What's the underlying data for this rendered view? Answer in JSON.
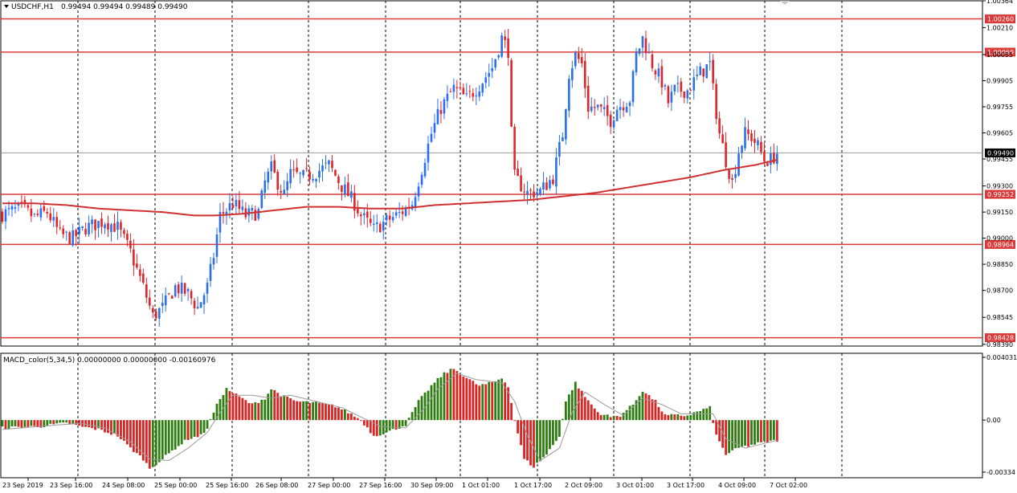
{
  "symbol_label": "USDCHF,H1",
  "ohlc_label": "0.99494 0.99494 0.99489 0.99490",
  "macd_label": "MACD_color(5,34,5) 0.00000000 0.00000000 -0.00160976",
  "current_price_label": "0.99490",
  "colors": {
    "bull": "#2a6ff0",
    "bear": "#e0242a",
    "level": "#d93a3a",
    "ma": "#d03030",
    "macd_up": "#2e7d10",
    "macd_down": "#dd2222",
    "signal": "#9a9a9a",
    "grid": "#000000",
    "current": "#9a9a9a"
  },
  "chart_data": [
    {
      "type": "candlestick",
      "name": "USDCHF,H1",
      "y_ticks": [
        "1.00364",
        "1.00210",
        "1.00055",
        "0.99905",
        "0.99755",
        "0.99605",
        "0.99455",
        "0.99300",
        "0.99150",
        "0.99000",
        "0.98850",
        "0.98700",
        "0.98545",
        "0.98390"
      ],
      "ylim": [
        0.9838,
        1.00364
      ],
      "levels": [
        "1.00260",
        "1.00069",
        "0.99252",
        "0.98964",
        "0.98428"
      ],
      "current_price": "0.99490",
      "x_labels": [
        "23 Sep 2019",
        "23 Sep 16:00",
        "24 Sep 08:00",
        "25 Sep 00:00",
        "25 Sep 16:00",
        "26 Sep 08:00",
        "27 Sep 00:00",
        "27 Sep 16:00",
        "30 Sep 09:00",
        "1 Oct 01:00",
        "1 Oct 17:00",
        "2 Oct 09:00",
        "3 Oct 01:00",
        "3 Oct 17:00",
        "4 Oct 09:00",
        "7 Oct 02:00"
      ],
      "close_anchors": [
        [
          0,
          0.9914
        ],
        [
          6,
          0.9917
        ],
        [
          10,
          0.9912
        ],
        [
          14,
          0.9915
        ],
        [
          18,
          0.9902
        ],
        [
          22,
          0.99
        ],
        [
          26,
          0.9906
        ],
        [
          32,
          0.991
        ],
        [
          36,
          0.9906
        ],
        [
          40,
          0.9892
        ],
        [
          44,
          0.9872
        ],
        [
          47,
          0.9855
        ],
        [
          50,
          0.986
        ],
        [
          54,
          0.9872
        ],
        [
          58,
          0.9868
        ],
        [
          61,
          0.986
        ],
        [
          64,
          0.9872
        ],
        [
          66,
          0.989
        ],
        [
          68,
          0.9913
        ],
        [
          72,
          0.992
        ],
        [
          76,
          0.9913
        ],
        [
          80,
          0.9915
        ],
        [
          82,
          0.9932
        ],
        [
          84,
          0.994
        ],
        [
          86,
          0.9932
        ],
        [
          88,
          0.9925
        ],
        [
          90,
          0.9937
        ],
        [
          94,
          0.9935
        ],
        [
          98,
          0.9938
        ],
        [
          102,
          0.9942
        ],
        [
          104,
          0.9936
        ],
        [
          106,
          0.993
        ],
        [
          110,
          0.992
        ],
        [
          112,
          0.9913
        ],
        [
          116,
          0.9905
        ],
        [
          120,
          0.991
        ],
        [
          124,
          0.9914
        ],
        [
          128,
          0.992
        ],
        [
          131,
          0.994
        ],
        [
          134,
          0.996
        ],
        [
          137,
          0.9975
        ],
        [
          141,
          0.9986
        ],
        [
          145,
          0.998
        ],
        [
          149,
          0.9988
        ],
        [
          153,
          0.9998
        ],
        [
          156,
          1.0015
        ],
        [
          158,
          1.0008
        ],
        [
          159,
          0.996
        ],
        [
          160,
          0.9935
        ],
        [
          164,
          0.9926
        ],
        [
          168,
          0.9927
        ],
        [
          172,
          0.9935
        ],
        [
          175,
          0.996
        ],
        [
          177,
          0.9995
        ],
        [
          179,
          1.0005
        ],
        [
          181,
          1.0
        ],
        [
          183,
          0.9975
        ],
        [
          186,
          0.9975
        ],
        [
          190,
          0.9968
        ],
        [
          192,
          0.9975
        ],
        [
          196,
          0.998
        ],
        [
          198,
          1.0005
        ],
        [
          200,
          1.0015
        ],
        [
          203,
          1.0
        ],
        [
          206,
          0.999
        ],
        [
          208,
          0.9978
        ],
        [
          210,
          0.9985
        ],
        [
          214,
          0.9985
        ],
        [
          218,
          0.9995
        ],
        [
          221,
          1.0
        ],
        [
          222,
          0.9985
        ],
        [
          224,
          0.996
        ],
        [
          226,
          0.9945
        ],
        [
          228,
          0.9932
        ],
        [
          230,
          0.995
        ],
        [
          232,
          0.996
        ],
        [
          234,
          0.9958
        ],
        [
          236,
          0.9953
        ],
        [
          238,
          0.9945
        ],
        [
          240,
          0.9945
        ],
        [
          242,
          0.9949
        ]
      ],
      "ma_anchors": [
        [
          0,
          0.992
        ],
        [
          10,
          0.992
        ],
        [
          20,
          0.9919
        ],
        [
          30,
          0.9917
        ],
        [
          40,
          0.9916
        ],
        [
          50,
          0.9915
        ],
        [
          60,
          0.9913
        ],
        [
          66,
          0.9913
        ],
        [
          75,
          0.9914
        ],
        [
          85,
          0.9916
        ],
        [
          95,
          0.9918
        ],
        [
          105,
          0.9918
        ],
        [
          115,
          0.9917
        ],
        [
          125,
          0.9917
        ],
        [
          135,
          0.9919
        ],
        [
          145,
          0.992
        ],
        [
          155,
          0.9921
        ],
        [
          165,
          0.9922
        ],
        [
          175,
          0.9924
        ],
        [
          185,
          0.9926
        ],
        [
          195,
          0.9929
        ],
        [
          205,
          0.9932
        ],
        [
          215,
          0.9935
        ],
        [
          225,
          0.9939
        ],
        [
          235,
          0.9942
        ],
        [
          242,
          0.9945
        ]
      ],
      "bar_count": 243
    },
    {
      "type": "bar",
      "name": "MACD_color(5,34,5)",
      "y_ticks": [
        "0.004031",
        "0.00",
        "-0.00334"
      ],
      "ylim": [
        -0.00334,
        0.004031
      ],
      "macd_anchors": [
        [
          0,
          -0.0005
        ],
        [
          12,
          -0.0004
        ],
        [
          20,
          -0.0002
        ],
        [
          24,
          -0.0004
        ],
        [
          30,
          -0.0006
        ],
        [
          36,
          -0.001
        ],
        [
          40,
          -0.0018
        ],
        [
          44,
          -0.0025
        ],
        [
          46,
          -0.0031
        ],
        [
          50,
          -0.0025
        ],
        [
          54,
          -0.0018
        ],
        [
          58,
          -0.0012
        ],
        [
          62,
          -0.001
        ],
        [
          64,
          -0.0005
        ],
        [
          66,
          0.0005
        ],
        [
          68,
          0.0014
        ],
        [
          70,
          0.002
        ],
        [
          74,
          0.0015
        ],
        [
          78,
          0.001
        ],
        [
          82,
          0.0014
        ],
        [
          84,
          0.002
        ],
        [
          88,
          0.0015
        ],
        [
          92,
          0.0012
        ],
        [
          98,
          0.0011
        ],
        [
          104,
          0.0009
        ],
        [
          108,
          0.0005
        ],
        [
          112,
          0.0
        ],
        [
          116,
          -0.001
        ],
        [
          120,
          -0.0008
        ],
        [
          126,
          -0.0003
        ],
        [
          130,
          0.0012
        ],
        [
          134,
          0.0022
        ],
        [
          138,
          0.003
        ],
        [
          141,
          0.0033
        ],
        [
          145,
          0.0027
        ],
        [
          149,
          0.0022
        ],
        [
          153,
          0.0024
        ],
        [
          156,
          0.0027
        ],
        [
          158,
          0.0022
        ],
        [
          160,
          0.0
        ],
        [
          163,
          -0.0025
        ],
        [
          166,
          -0.003
        ],
        [
          170,
          -0.0022
        ],
        [
          174,
          -0.001
        ],
        [
          176,
          0.0012
        ],
        [
          179,
          0.0024
        ],
        [
          182,
          0.0015
        ],
        [
          186,
          0.0005
        ],
        [
          190,
          0.0002
        ],
        [
          193,
          0.0003
        ],
        [
          197,
          0.001
        ],
        [
          200,
          0.0019
        ],
        [
          204,
          0.0012
        ],
        [
          207,
          0.0003
        ],
        [
          210,
          0.0003
        ],
        [
          214,
          0.0003
        ],
        [
          218,
          0.0006
        ],
        [
          221,
          0.0008
        ],
        [
          223,
          -0.001
        ],
        [
          226,
          -0.0022
        ],
        [
          230,
          -0.0018
        ],
        [
          236,
          -0.0015
        ],
        [
          242,
          -0.0013
        ]
      ],
      "signal_anchors": [
        [
          0,
          -0.0006
        ],
        [
          12,
          -0.0004
        ],
        [
          24,
          -0.0002
        ],
        [
          32,
          -0.0005
        ],
        [
          40,
          -0.0014
        ],
        [
          46,
          -0.0025
        ],
        [
          52,
          -0.0026
        ],
        [
          58,
          -0.0018
        ],
        [
          64,
          -0.0008
        ],
        [
          68,
          0.0005
        ],
        [
          72,
          0.0016
        ],
        [
          78,
          0.0016
        ],
        [
          84,
          0.0014
        ],
        [
          90,
          0.0016
        ],
        [
          98,
          0.0012
        ],
        [
          106,
          0.0008
        ],
        [
          112,
          0.0002
        ],
        [
          118,
          -0.0004
        ],
        [
          126,
          -0.0005
        ],
        [
          132,
          0.0008
        ],
        [
          136,
          0.002
        ],
        [
          142,
          0.003
        ],
        [
          148,
          0.0026
        ],
        [
          156,
          0.0024
        ],
        [
          160,
          0.0012
        ],
        [
          164,
          -0.001
        ],
        [
          168,
          -0.0026
        ],
        [
          174,
          -0.0018
        ],
        [
          178,
          0.0005
        ],
        [
          182,
          0.0018
        ],
        [
          188,
          0.001
        ],
        [
          194,
          0.0003
        ],
        [
          200,
          0.0014
        ],
        [
          206,
          0.001
        ],
        [
          212,
          0.0004
        ],
        [
          218,
          0.0004
        ],
        [
          222,
          0.0004
        ],
        [
          226,
          -0.0012
        ],
        [
          232,
          -0.0018
        ],
        [
          242,
          -0.0013
        ]
      ]
    }
  ]
}
